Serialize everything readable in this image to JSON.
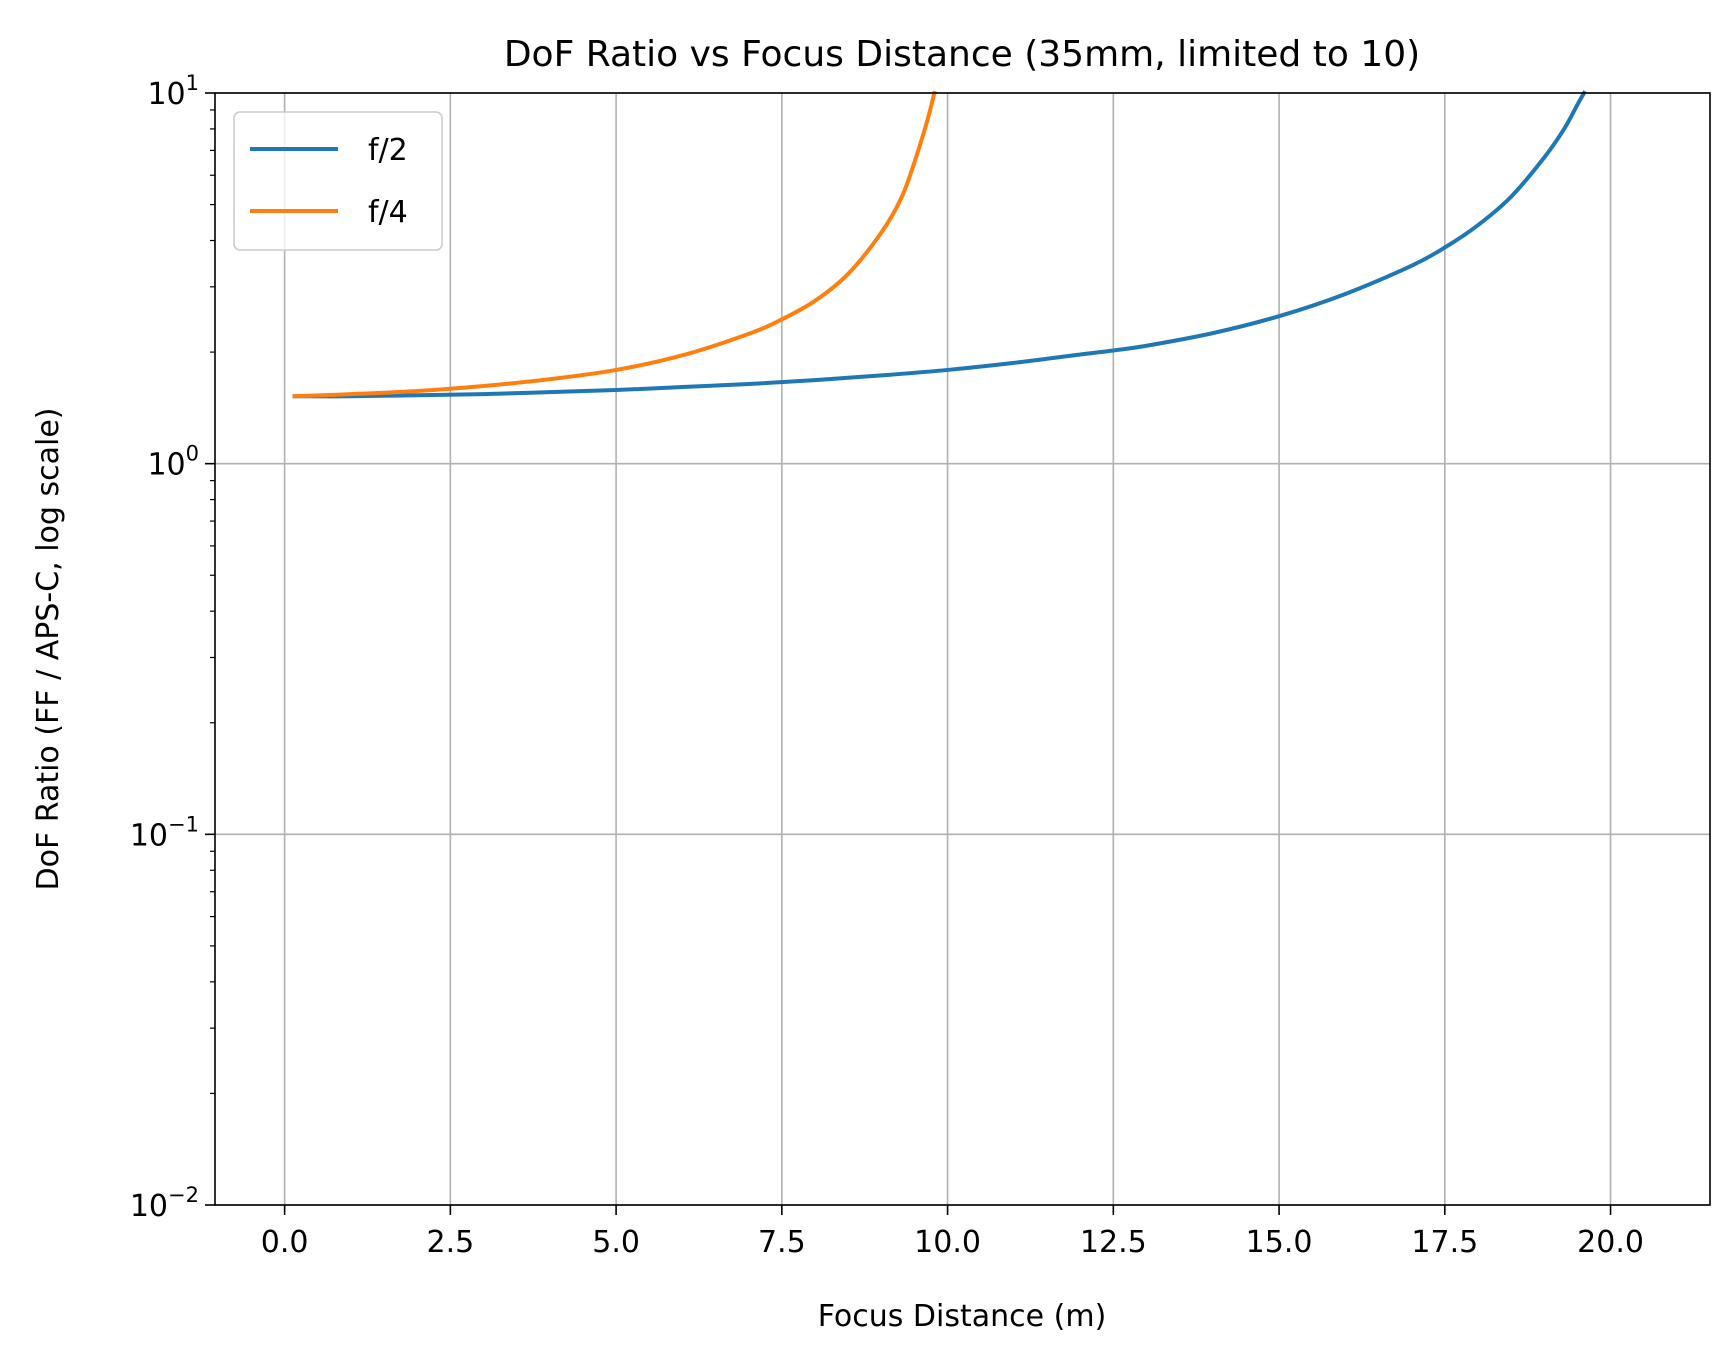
{
  "chart_data": {
    "type": "line",
    "title": "DoF Ratio vs Focus Distance (35mm, limited to 10)",
    "xlabel": "Focus Distance (m)",
    "ylabel": "DoF Ratio (FF / APS-C, log scale)",
    "xlim": [
      -1.05,
      21.5
    ],
    "ylim": [
      0.01,
      10
    ],
    "yscale": "log",
    "grid": true,
    "legend_position": "upper-left",
    "x_ticks": [
      {
        "value": 0,
        "label": "0.0"
      },
      {
        "value": 2.5,
        "label": "2.5"
      },
      {
        "value": 5,
        "label": "5.0"
      },
      {
        "value": 7.5,
        "label": "7.5"
      },
      {
        "value": 10,
        "label": "10.0"
      },
      {
        "value": 12.5,
        "label": "12.5"
      },
      {
        "value": 15,
        "label": "15.0"
      },
      {
        "value": 17.5,
        "label": "17.5"
      },
      {
        "value": 20,
        "label": "20.0"
      }
    ],
    "y_ticks": [
      {
        "value": 10,
        "base": "10",
        "exponent": "1"
      },
      {
        "value": 1,
        "base": "10",
        "exponent": "0"
      },
      {
        "value": 0.1,
        "base": "10",
        "exponent": "−1"
      },
      {
        "value": 0.01,
        "base": "10",
        "exponent": "−2"
      }
    ],
    "series": [
      {
        "name": "f/2",
        "color": "#1f77b4",
        "x": [
          0.15,
          1,
          2,
          3,
          4,
          5,
          6,
          7,
          8,
          9,
          10,
          11,
          12,
          12.5,
          13,
          14,
          15,
          16,
          17,
          17.5,
          18,
          18.5,
          19,
          19.3,
          19.5,
          19.6
        ],
        "y": [
          1.52,
          1.52,
          1.53,
          1.54,
          1.56,
          1.58,
          1.61,
          1.64,
          1.68,
          1.73,
          1.79,
          1.87,
          1.97,
          2.02,
          2.08,
          2.25,
          2.5,
          2.87,
          3.42,
          3.83,
          4.4,
          5.25,
          6.7,
          8.0,
          9.3,
          10
        ]
      },
      {
        "name": "f/4",
        "color": "#ff7f0e",
        "x": [
          0.15,
          1,
          2,
          3,
          4,
          5,
          6,
          7,
          7.5,
          8,
          8.5,
          9,
          9.3,
          9.5,
          9.7,
          9.8
        ],
        "y": [
          1.52,
          1.54,
          1.57,
          1.62,
          1.69,
          1.79,
          1.96,
          2.24,
          2.45,
          2.75,
          3.25,
          4.2,
          5.2,
          6.5,
          8.5,
          10
        ]
      }
    ]
  }
}
